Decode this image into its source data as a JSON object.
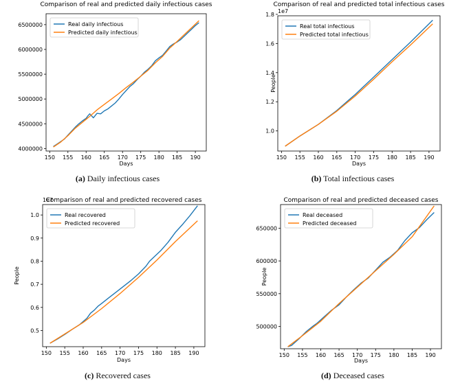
{
  "chart_data": [
    {
      "type": "line",
      "title": "Comparison of real and predicted daily infectious cases",
      "xlabel": "Days",
      "ylabel": "",
      "xlim": [
        149,
        193
      ],
      "ylim": [
        3950000,
        6720000
      ],
      "xticks": [
        150,
        155,
        160,
        165,
        170,
        175,
        180,
        185,
        190
      ],
      "yticks": [
        4000000,
        4500000,
        5000000,
        5500000,
        6000000,
        6500000
      ],
      "ytick_labels": [
        "4000000",
        "4500000",
        "5000000",
        "5500000",
        "6000000",
        "6500000"
      ],
      "offset_label": "",
      "legend": "top-left",
      "caption_tag": "(a)",
      "caption_text": "Daily infectious cases",
      "series": [
        {
          "name": "Real daily infectious",
          "color": "#1f77b4",
          "x": [
            151,
            152,
            153,
            154,
            155,
            156,
            157,
            158,
            159,
            160,
            160.5,
            161,
            162,
            163,
            164,
            165,
            166,
            167,
            168,
            169,
            170,
            171,
            172,
            173,
            174,
            175,
            176,
            177,
            178,
            179,
            180,
            181,
            182,
            183,
            184,
            185,
            186,
            187,
            188,
            189,
            190,
            191
          ],
          "y": [
            4040000,
            4090000,
            4140000,
            4190000,
            4270000,
            4350000,
            4430000,
            4500000,
            4560000,
            4610000,
            4660000,
            4700000,
            4620000,
            4710000,
            4700000,
            4760000,
            4800000,
            4860000,
            4920000,
            5000000,
            5090000,
            5170000,
            5250000,
            5310000,
            5390000,
            5460000,
            5540000,
            5600000,
            5670000,
            5770000,
            5830000,
            5880000,
            5970000,
            6060000,
            6110000,
            6150000,
            6200000,
            6270000,
            6340000,
            6410000,
            6480000,
            6540000
          ]
        },
        {
          "name": "Predicted daily infectious",
          "color": "#ff7f0e",
          "x": [
            151,
            153,
            155,
            157,
            159,
            161,
            163,
            165,
            167,
            169,
            171,
            173,
            175,
            177,
            179,
            181,
            183,
            185,
            187,
            189,
            191
          ],
          "y": [
            4030000,
            4130000,
            4260000,
            4410000,
            4530000,
            4650000,
            4780000,
            4890000,
            5000000,
            5110000,
            5230000,
            5340000,
            5460000,
            5580000,
            5730000,
            5860000,
            6030000,
            6160000,
            6300000,
            6440000,
            6580000
          ]
        }
      ]
    },
    {
      "type": "line",
      "title": "Comparison of real and predicted total infectious cases",
      "xlabel": "Days",
      "ylabel": "People",
      "xlim": [
        149,
        193
      ],
      "ylim": [
        0.862,
        1.79
      ],
      "xticks": [
        150,
        155,
        160,
        165,
        170,
        175,
        180,
        185,
        190
      ],
      "yticks": [
        1.0,
        1.2,
        1.4,
        1.6,
        1.8
      ],
      "ytick_labels": [
        "1.0",
        "1.2",
        "1.4",
        "1.6",
        "1.8"
      ],
      "offset_label": "1e7",
      "legend": "top-left",
      "caption_tag": "(b)",
      "caption_text": "Total infectious cases",
      "series": [
        {
          "name": "Real total infectious",
          "color": "#1f77b4",
          "x": [
            151,
            155,
            160,
            165,
            170,
            175,
            180,
            185,
            191
          ],
          "y": [
            0.895,
            0.965,
            1.045,
            1.14,
            1.25,
            1.37,
            1.49,
            1.61,
            1.76
          ]
        },
        {
          "name": "Predicted total infectious",
          "color": "#ff7f0e",
          "x": [
            151,
            155,
            160,
            165,
            170,
            175,
            180,
            185,
            191
          ],
          "y": [
            0.895,
            0.965,
            1.045,
            1.135,
            1.24,
            1.355,
            1.475,
            1.59,
            1.735
          ]
        }
      ]
    },
    {
      "type": "line",
      "title": "Comparison of real and predicted recovered cases",
      "xlabel": "Days",
      "ylabel": "People",
      "xlim": [
        149,
        193
      ],
      "ylim": [
        0.43,
        1.045
      ],
      "xticks": [
        150,
        155,
        160,
        165,
        170,
        175,
        180,
        185,
        190
      ],
      "yticks": [
        0.5,
        0.6,
        0.7,
        0.8,
        0.9,
        1.0
      ],
      "ytick_labels": [
        "0.5",
        "0.6",
        "0.7",
        "0.8",
        "0.9",
        "1.0"
      ],
      "offset_label": "1e7",
      "legend": "top-left",
      "caption_tag": "(c)",
      "caption_text": "Recovered cases",
      "series": [
        {
          "name": "Real recovered",
          "color": "#1f77b4",
          "x": [
            151,
            153,
            155,
            157,
            159,
            161,
            162,
            163,
            164,
            165,
            167,
            169,
            171,
            173,
            175,
            177,
            178,
            179,
            181,
            183,
            185,
            187,
            189,
            191
          ],
          "y": [
            0.445,
            0.463,
            0.483,
            0.505,
            0.525,
            0.553,
            0.575,
            0.588,
            0.605,
            0.617,
            0.642,
            0.667,
            0.692,
            0.717,
            0.745,
            0.778,
            0.8,
            0.815,
            0.845,
            0.882,
            0.925,
            0.96,
            0.998,
            1.04
          ]
        },
        {
          "name": "Predicted recovered",
          "color": "#ff7f0e",
          "x": [
            151,
            155,
            160,
            165,
            170,
            175,
            180,
            185,
            191
          ],
          "y": [
            0.445,
            0.485,
            0.535,
            0.595,
            0.66,
            0.73,
            0.805,
            0.885,
            0.975
          ]
        }
      ]
    },
    {
      "type": "line",
      "title": "Comparison of real and predicted deceased cases",
      "xlabel": "Days",
      "ylabel": "People",
      "xlim": [
        149,
        193
      ],
      "ylim": [
        466000,
        686000
      ],
      "xticks": [
        150,
        155,
        160,
        165,
        170,
        175,
        180,
        185,
        190
      ],
      "yticks": [
        500000,
        550000,
        600000,
        650000
      ],
      "ytick_labels": [
        "500000",
        "550000",
        "600000",
        "650000"
      ],
      "offset_label": "",
      "legend": "top-left",
      "caption_tag": "(d)",
      "caption_text": "Deceased cases",
      "series": [
        {
          "name": "Real deceased",
          "color": "#1f77b4",
          "x": [
            151,
            152,
            153,
            154,
            156,
            158,
            159,
            161,
            163,
            165,
            167,
            169,
            171,
            173,
            175,
            177,
            179,
            181,
            183,
            185,
            187,
            189,
            191
          ],
          "y": [
            469000,
            471000,
            476000,
            481000,
            492000,
            501000,
            505000,
            515000,
            525000,
            533000,
            545000,
            556000,
            566000,
            574000,
            586000,
            598000,
            606000,
            616000,
            631000,
            643000,
            651000,
            663000,
            674000
          ]
        },
        {
          "name": "Predicted deceased",
          "color": "#ff7f0e",
          "x": [
            151,
            155,
            160,
            165,
            170,
            175,
            180,
            185,
            191
          ],
          "y": [
            469000,
            486000,
            508000,
            535000,
            560000,
            585000,
            610000,
            637000,
            684000
          ]
        }
      ]
    }
  ]
}
